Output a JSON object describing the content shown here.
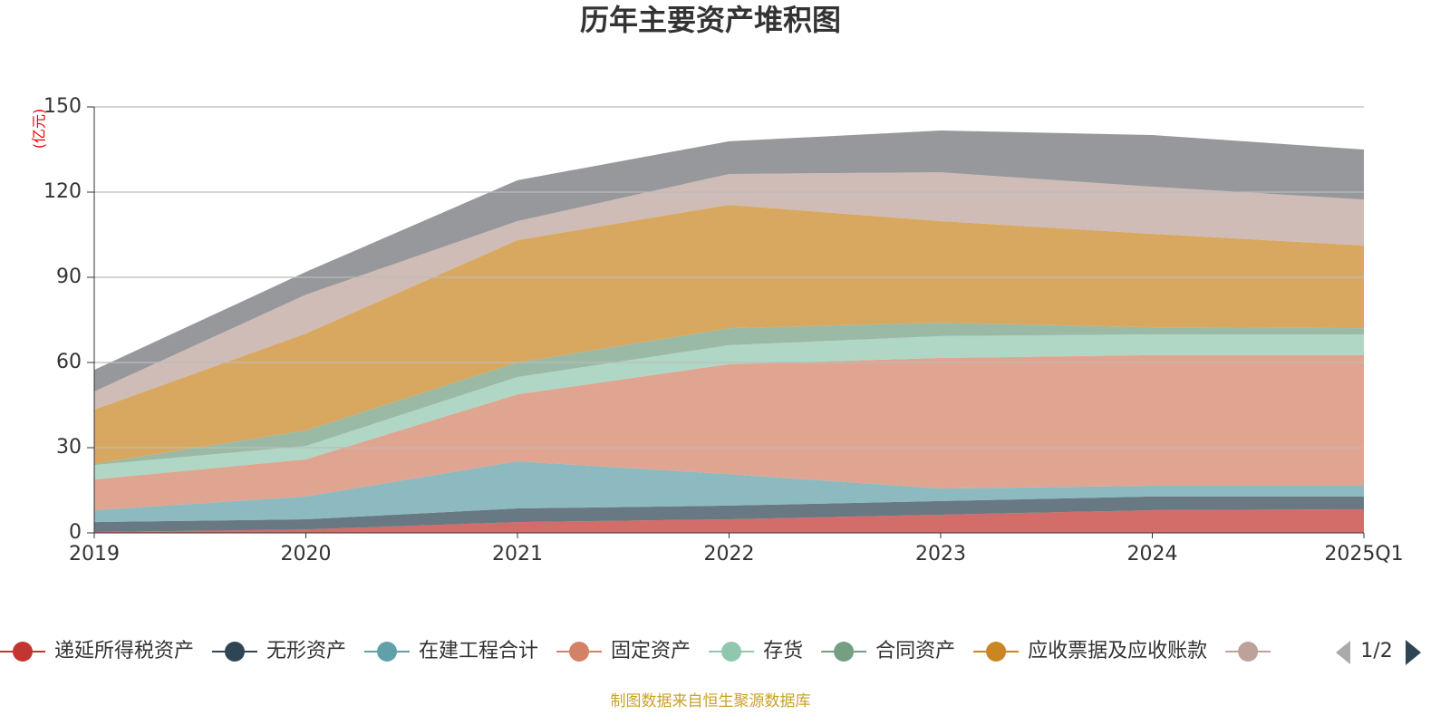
{
  "chart_data": {
    "type": "stacked_area",
    "title": "历年主要资产堆积图",
    "y_label": "(亿元)",
    "categories": [
      "2019",
      "2020",
      "2021",
      "2022",
      "2023",
      "2024",
      "2025Q1"
    ],
    "series": [
      {
        "name": "递延所得税资产",
        "color": "#c23531",
        "values": [
          0.3,
          1.2,
          3.8,
          4.8,
          6.4,
          8,
          8.3
        ]
      },
      {
        "name": "无形资产",
        "color": "#2f4554",
        "values": [
          3.5,
          3.6,
          4.8,
          4.8,
          4.8,
          4.8,
          4.5
        ]
      },
      {
        "name": "在建工程合计",
        "color": "#61a0a8",
        "values": [
          4.2,
          8,
          16.6,
          11.1,
          4.4,
          3.8,
          3.8
        ]
      },
      {
        "name": "固定资产",
        "color": "#d48265",
        "values": [
          10.8,
          13.1,
          23.6,
          38.7,
          46,
          46,
          46
        ]
      },
      {
        "name": "存货",
        "color": "#91c7ae",
        "values": [
          5.1,
          4.7,
          6.1,
          6.7,
          7.7,
          7.3,
          7.3
        ]
      },
      {
        "name": "合同资产",
        "color": "#749f83",
        "values": [
          0.4,
          5.5,
          5.1,
          6,
          4.7,
          2.5,
          2.2
        ]
      },
      {
        "name": "应收票据及应收账款",
        "color": "#ca8622",
        "values": [
          19.1,
          34.1,
          43.1,
          43.4,
          35.8,
          32.9,
          29.1
        ]
      },
      {
        "color": "#bda29a",
        "values": [
          6.4,
          13.7,
          6.7,
          10.9,
          17.2,
          16.6,
          16.2
        ]
      },
      {
        "color": "#6e7074",
        "values": [
          7.6,
          8,
          14.4,
          11.5,
          14.7,
          18.2,
          17.6
        ]
      }
    ],
    "legend_count": 8,
    "legend_page": "1/2",
    "ylim": [
      0,
      150
    ],
    "yticks": [
      0,
      30,
      60,
      90,
      120,
      150
    ],
    "grid": true,
    "source": "制图数据来自恒生聚源数据库"
  }
}
